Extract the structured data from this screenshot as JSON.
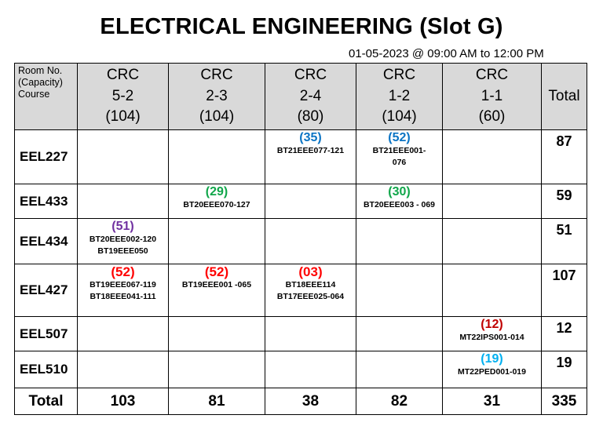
{
  "title": "ELECTRICAL ENGINEERING (Slot G)",
  "subtitle": "01-05-2023 @ 09:00 AM to 12:00 PM",
  "header": {
    "label_lines": [
      "Room No.",
      "(Capacity)",
      "Course"
    ],
    "rooms": [
      {
        "name": "CRC",
        "num": "5-2",
        "cap": "(104)"
      },
      {
        "name": "CRC",
        "num": "2-3",
        "cap": "(104)"
      },
      {
        "name": "CRC",
        "num": "2-4",
        "cap": "(80)"
      },
      {
        "name": "CRC",
        "num": "1-2",
        "cap": "(104)"
      },
      {
        "name": "CRC",
        "num": "1-1",
        "cap": "(60)"
      }
    ],
    "total": "Total"
  },
  "rows": [
    {
      "course": "EEL227",
      "total": "87",
      "cells": [
        {
          "count": "",
          "lines": []
        },
        {
          "count": "",
          "lines": []
        },
        {
          "count": "(35)",
          "lines": [
            "BT21EEE077-121"
          ],
          "color": "#0b74c4"
        },
        {
          "count": "(52)",
          "lines": [
            "BT21EEE001-",
            "076"
          ],
          "color": "#0b74c4"
        },
        {
          "count": "",
          "lines": []
        }
      ]
    },
    {
      "course": "EEL433",
      "total": "59",
      "cells": [
        {
          "count": "",
          "lines": []
        },
        {
          "count": "(29)",
          "lines": [
            "BT20EEE070-127"
          ],
          "color": "#10a64a"
        },
        {
          "count": "",
          "lines": []
        },
        {
          "count": "(30)",
          "lines": [
            "BT20EEE003 - 069"
          ],
          "color": "#10a64a"
        },
        {
          "count": "",
          "lines": []
        }
      ]
    },
    {
      "course": "EEL434",
      "total": "51",
      "cells": [
        {
          "count": "(51)",
          "lines": [
            "BT20EEE002-120",
            "BT19EEE050"
          ],
          "color": "#7030a0"
        },
        {
          "count": "",
          "lines": []
        },
        {
          "count": "",
          "lines": []
        },
        {
          "count": "",
          "lines": []
        },
        {
          "count": "",
          "lines": []
        }
      ]
    },
    {
      "course": "EEL427",
      "total": "107",
      "cells": [
        {
          "count": "(52)",
          "lines": [
            "BT19EEE067-119",
            "BT18EEE041-111"
          ],
          "color": "#ff0000"
        },
        {
          "count": "(52)",
          "lines": [
            "BT19EEE001 -065"
          ],
          "color": "#ff0000"
        },
        {
          "count": "(03)",
          "lines": [
            "BT18EEE114",
            "BT17EEE025-064"
          ],
          "color": "#ff0000"
        },
        {
          "count": "",
          "lines": []
        },
        {
          "count": "",
          "lines": []
        }
      ]
    },
    {
      "course": "EEL507",
      "total": "12",
      "cells": [
        {
          "count": "",
          "lines": []
        },
        {
          "count": "",
          "lines": []
        },
        {
          "count": "",
          "lines": []
        },
        {
          "count": "",
          "lines": []
        },
        {
          "count": "(12)",
          "lines": [
            "MT22IPS001-014"
          ],
          "color": "#c00000"
        }
      ]
    },
    {
      "course": "EEL510",
      "total": "19",
      "cells": [
        {
          "count": "",
          "lines": []
        },
        {
          "count": "",
          "lines": []
        },
        {
          "count": "",
          "lines": []
        },
        {
          "count": "",
          "lines": []
        },
        {
          "count": "(19)",
          "lines": [
            "MT22PED001-019"
          ],
          "color": "#00b0f0"
        }
      ]
    }
  ],
  "footer": {
    "label": "Total",
    "values": [
      "103",
      "81",
      "38",
      "82",
      "31",
      "335"
    ]
  }
}
